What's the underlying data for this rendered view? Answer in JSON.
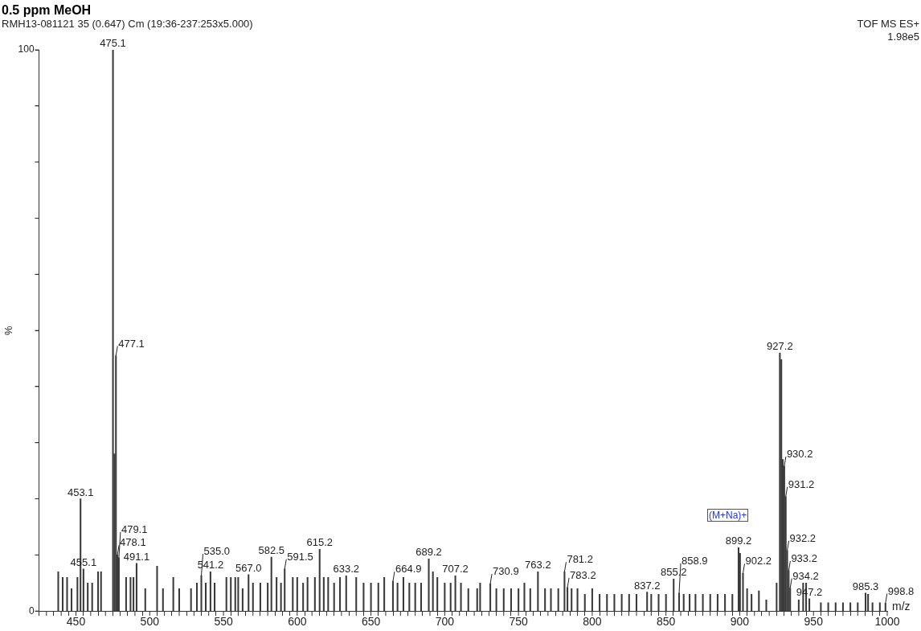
{
  "chart_data": {
    "type": "bar",
    "title": "0.5 ppm MeOH",
    "subtitle": "RMH13-081121 35 (0.647) Cm (19:36-237:253x5.000)",
    "xlabel": "m/z",
    "ylabel": "%",
    "annotations": [
      "TOF MS ES+",
      "1.98e5",
      "(M+Na)+",
      {
        "text": "453.1",
        "x": 453.1,
        "y": 20
      },
      {
        "text": "455.1",
        "x": 455.1,
        "y": 7.5
      },
      {
        "text": "475.1",
        "x": 475.1,
        "y": 100
      },
      {
        "text": "477.1",
        "x": 477.1,
        "y": 45.5
      },
      {
        "text": "478.1",
        "x": 478.1,
        "y": 10
      },
      {
        "text": "479.1",
        "x": 479.1,
        "y": 9.5
      },
      {
        "text": "491.1",
        "x": 491.1,
        "y": 8.5
      },
      {
        "text": "535.0",
        "x": 535.0,
        "y": 6.3
      },
      {
        "text": "541.2",
        "x": 541.2,
        "y": 7
      },
      {
        "text": "567.0",
        "x": 567.0,
        "y": 6.5
      },
      {
        "text": "582.5",
        "x": 582.5,
        "y": 9.6
      },
      {
        "text": "591.5",
        "x": 591.5,
        "y": 7.5
      },
      {
        "text": "615.2",
        "x": 615.2,
        "y": 11
      },
      {
        "text": "633.2",
        "x": 633.2,
        "y": 6.3
      },
      {
        "text": "664.9",
        "x": 664.9,
        "y": 5.3
      },
      {
        "text": "689.2",
        "x": 689.2,
        "y": 9.3
      },
      {
        "text": "707.2",
        "x": 707.2,
        "y": 6.3
      },
      {
        "text": "730.9",
        "x": 730.9,
        "y": 4.9
      },
      {
        "text": "763.2",
        "x": 763.2,
        "y": 7
      },
      {
        "text": "781.2",
        "x": 781.2,
        "y": 7
      },
      {
        "text": "783.2",
        "x": 783.2,
        "y": 4.2
      },
      {
        "text": "837.2",
        "x": 837.2,
        "y": 3.4
      },
      {
        "text": "855.2",
        "x": 855.2,
        "y": 5.7
      },
      {
        "text": "858.9",
        "x": 858.9,
        "y": 3.2
      },
      {
        "text": "899.2",
        "x": 899.2,
        "y": 11.3
      },
      {
        "text": "902.2",
        "x": 902.2,
        "y": 6.7
      },
      {
        "text": "927.2",
        "x": 927.2,
        "y": 46
      },
      {
        "text": "930.2",
        "x": 930.2,
        "y": 25.8
      },
      {
        "text": "931.2",
        "x": 931.2,
        "y": 20.4
      },
      {
        "text": "932.2",
        "x": 932.2,
        "y": 10.8
      },
      {
        "text": "933.2",
        "x": 933.2,
        "y": 7.2
      },
      {
        "text": "934.2",
        "x": 934.2,
        "y": 4.1
      },
      {
        "text": "947.2",
        "x": 947.2,
        "y": 2.2
      },
      {
        "text": "985.3",
        "x": 985.3,
        "y": 3.2
      },
      {
        "text": "998.8",
        "x": 998.8,
        "y": 1.4
      }
    ],
    "xlim": [
      425,
      1000
    ],
    "ylim": [
      0,
      100
    ],
    "xticks": [
      {
        "value": 430,
        "label": null
      },
      {
        "value": 440,
        "label": null
      },
      450,
      {
        "value": 460,
        "label": null
      },
      {
        "value": 470,
        "label": null
      },
      {
        "value": 480,
        "label": null
      },
      {
        "value": 490,
        "label": null
      },
      500,
      {
        "value": 510,
        "label": null
      },
      {
        "value": 520,
        "label": null
      },
      {
        "value": 530,
        "label": null
      },
      {
        "value": 540,
        "label": null
      },
      550,
      {
        "value": 560,
        "label": null
      },
      {
        "value": 570,
        "label": null
      },
      {
        "value": 580,
        "label": null
      },
      {
        "value": 590,
        "label": null
      },
      600,
      {
        "value": 610,
        "label": null
      },
      {
        "value": 620,
        "label": null
      },
      {
        "value": 630,
        "label": null
      },
      {
        "value": 640,
        "label": null
      },
      650,
      {
        "value": 660,
        "label": null
      },
      {
        "value": 670,
        "label": null
      },
      {
        "value": 680,
        "label": null
      },
      {
        "value": 690,
        "label": null
      },
      700,
      {
        "value": 710,
        "label": null
      },
      {
        "value": 720,
        "label": null
      },
      {
        "value": 730,
        "label": null
      },
      {
        "value": 740,
        "label": null
      },
      750,
      {
        "value": 760,
        "label": null
      },
      {
        "value": 770,
        "label": null
      },
      {
        "value": 780,
        "label": null
      },
      {
        "value": 790,
        "label": null
      },
      800,
      {
        "value": 810,
        "label": null
      },
      {
        "value": 820,
        "label": null
      },
      {
        "value": 830,
        "label": null
      },
      {
        "value": 840,
        "label": null
      },
      850,
      {
        "value": 860,
        "label": null
      },
      {
        "value": 870,
        "label": null
      },
      {
        "value": 880,
        "label": null
      },
      {
        "value": 890,
        "label": null
      },
      900,
      {
        "value": 910,
        "label": null
      },
      {
        "value": 920,
        "label": null
      },
      {
        "value": 930,
        "label": null
      },
      {
        "value": 940,
        "label": null
      },
      950,
      {
        "value": 960,
        "label": null
      },
      {
        "value": 970,
        "label": null
      },
      {
        "value": 980,
        "label": null
      },
      {
        "value": 990,
        "label": null
      },
      1000
    ],
    "yticks": [
      0,
      {
        "value": 10,
        "label": null
      },
      {
        "value": 20,
        "label": null
      },
      {
        "value": 30,
        "label": null
      },
      {
        "value": 40,
        "label": null
      },
      {
        "value": 50,
        "label": null
      },
      {
        "value": 60,
        "label": null
      },
      {
        "value": 70,
        "label": null
      },
      {
        "value": 80,
        "label": null
      },
      {
        "value": 90,
        "label": null
      },
      100
    ],
    "series": [
      {
        "color": "#3a3a3a",
        "x": [
          438,
          441,
          444,
          447,
          451,
          453.1,
          455.1,
          458,
          461,
          465,
          467,
          475.1,
          476.1,
          477.1,
          478.1,
          479.1,
          484,
          487,
          489,
          491.1,
          497,
          505,
          509,
          516,
          520,
          528,
          532,
          535.0,
          538,
          541.2,
          544,
          552,
          555,
          558,
          560,
          563,
          567.0,
          570,
          575,
          580,
          582.5,
          586,
          589,
          591.5,
          597,
          600,
          604,
          607,
          612,
          615.2,
          618,
          621,
          625,
          629,
          633.2,
          640,
          645,
          650,
          655,
          659,
          664.9,
          668,
          672,
          676,
          680,
          684,
          689.2,
          692,
          695,
          700,
          704,
          707.2,
          711,
          716,
          722,
          724,
          730.9,
          735,
          740,
          745,
          750,
          754,
          758,
          763.2,
          768,
          772,
          777,
          781.2,
          783.2,
          786,
          790,
          795,
          800,
          805,
          810,
          815,
          820,
          825,
          830,
          837.2,
          840,
          845,
          850,
          855.2,
          858.9,
          862,
          866,
          870,
          875,
          880,
          885,
          890,
          895,
          899.2,
          900.2,
          902.2,
          905,
          908,
          913,
          918,
          925,
          927.2,
          928.2,
          929.2,
          930.2,
          931.2,
          932.2,
          933.2,
          934.2,
          940,
          943,
          945,
          947.2,
          955,
          960,
          965,
          970,
          975,
          980,
          985.3,
          987,
          990,
          995,
          998.8
        ],
        "values": [
          7,
          6,
          6,
          4,
          6,
          20,
          7.5,
          5,
          5,
          7,
          7,
          100,
          28,
          45.5,
          10,
          9.5,
          6,
          6,
          6,
          8.5,
          4,
          8,
          4,
          6,
          4,
          4,
          5,
          6.3,
          5,
          7,
          5,
          6,
          6,
          6,
          6,
          4,
          6.5,
          5,
          5,
          5,
          9.6,
          6,
          5,
          7.5,
          6,
          6,
          5,
          6,
          6,
          11,
          6,
          6,
          5,
          6,
          6.3,
          6,
          5,
          5,
          5,
          6,
          5.3,
          5,
          6,
          5,
          5,
          5,
          9.3,
          7,
          6,
          5,
          5,
          6.3,
          5,
          4,
          4,
          5,
          4.9,
          4,
          4,
          4,
          4,
          5,
          4,
          7,
          4,
          4,
          4,
          7,
          4.2,
          4,
          4,
          3,
          4,
          3,
          3,
          3,
          3,
          3,
          3,
          3.4,
          3,
          3,
          3,
          5.7,
          3.2,
          3,
          3,
          3,
          3,
          3,
          3,
          3,
          3,
          11.3,
          10.3,
          6.7,
          4,
          3,
          3.6,
          2,
          5,
          46,
          44.8,
          27,
          25.8,
          20.4,
          10.8,
          7.2,
          4.1,
          2,
          5,
          5,
          2.2,
          1.5,
          1.5,
          1.5,
          1.5,
          1.5,
          1.5,
          3.2,
          3,
          1.5,
          1.5,
          1.4
        ]
      }
    ]
  }
}
